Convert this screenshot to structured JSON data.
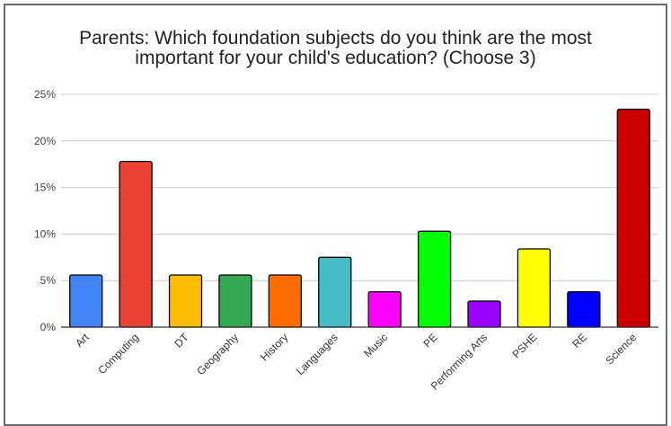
{
  "chart_data": {
    "type": "bar",
    "title_lines": [
      "Parents: Which foundation subjects do you think are the most",
      "important for your child's education? (Choose 3)"
    ],
    "categories": [
      "Art",
      "Computing",
      "DT",
      "Geography",
      "History",
      "Languages",
      "Music",
      "PE",
      "Performing Arts",
      "PSHE",
      "RE",
      "Science"
    ],
    "values": [
      5.6,
      17.8,
      5.6,
      5.6,
      5.6,
      7.5,
      3.8,
      10.3,
      2.8,
      8.4,
      3.8,
      23.4
    ],
    "colors": [
      "#4285f4",
      "#ea4335",
      "#fbbc04",
      "#34a853",
      "#ff6d01",
      "#46bdc6",
      "#ff00ff",
      "#00ff00",
      "#9900ff",
      "#ffff00",
      "#0000ff",
      "#cc0000"
    ],
    "ylim": [
      0,
      25
    ],
    "yticks": [
      "0%",
      "5%",
      "10%",
      "15%",
      "20%",
      "25%"
    ],
    "grid": true,
    "legend": "none"
  }
}
